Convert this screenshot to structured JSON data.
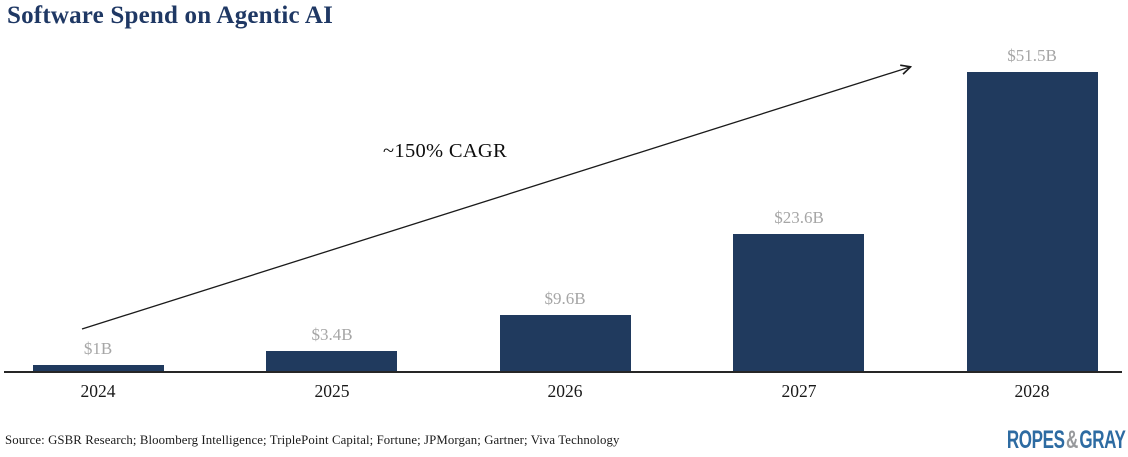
{
  "chart_data": {
    "type": "bar",
    "title": "Software Spend on Agentic AI",
    "categories": [
      "2024",
      "2025",
      "2026",
      "2027",
      "2028"
    ],
    "values": [
      1,
      3.4,
      9.6,
      23.6,
      51.5
    ],
    "value_labels": [
      "$1B",
      "$3.4B",
      "$9.6B",
      "$23.6B",
      "$51.5B"
    ],
    "annotation": "~150% CAGR",
    "xlabel": "",
    "ylabel": "",
    "ylim": [
      0,
      51.5
    ],
    "grid": false,
    "legend": false,
    "bar_color": "#203A5E",
    "value_label_color": "#A6A6A6",
    "title_color": "#1F3864",
    "axis_color": "#262626",
    "arrow_color": "#1a1a1a"
  },
  "footer": {
    "source": "Source: GSBR Research; Bloomberg Intelligence; TriplePoint Capital; Fortune; JPMorgan; Gartner; Viva Technology",
    "logo": {
      "ropes": "ROPES",
      "amp": "&",
      "gray": "GRAY",
      "blue": "#2D6BA2",
      "gray_color": "#97999C"
    }
  }
}
